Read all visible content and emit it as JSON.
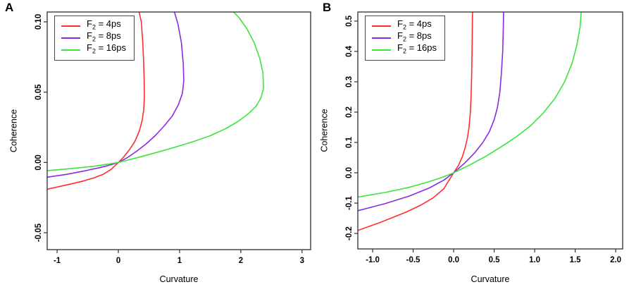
{
  "figure": {
    "background": "#ffffff"
  },
  "axis_style": {
    "box_color": "#2e2e2e",
    "tick_color": "#2e2e2e",
    "label_color": "#000000"
  },
  "chart_data": [
    {
      "type": "line",
      "panel_label": "A",
      "xlabel": "Curvature",
      "ylabel": "Coherence",
      "xlim": [
        -1.162,
        3.14
      ],
      "ylim": [
        -0.062,
        0.107
      ],
      "grid": false,
      "legend_position": "top-left",
      "x_ticks": {
        "values": [
          -1,
          0,
          1,
          2,
          3
        ],
        "labels": [
          "-1",
          "0",
          "1",
          "2",
          "3"
        ]
      },
      "y_ticks": {
        "values": [
          -0.05,
          0.0,
          0.05,
          0.1
        ],
        "labels": [
          "-0.05",
          "0.00",
          "0.05",
          "0.10"
        ]
      },
      "legend": {
        "entries": [
          {
            "prefix": "F",
            "sub": "2",
            "suffix": " = 4ps",
            "color": "#ff2e2e"
          },
          {
            "prefix": "F",
            "sub": "2",
            "suffix": " = 8ps",
            "color": "#8a2be2"
          },
          {
            "prefix": "F",
            "sub": "2",
            "suffix": " = 16ps",
            "color": "#3ce43c"
          }
        ]
      },
      "series": [
        {
          "name": "F2 = 4ps",
          "color": "#ff2e2e",
          "points": [
            [
              -1.162,
              -0.019
            ],
            [
              -0.9,
              -0.0165
            ],
            [
              -0.6,
              -0.0135
            ],
            [
              -0.4,
              -0.011
            ],
            [
              -0.25,
              -0.0085
            ],
            [
              -0.12,
              -0.005
            ],
            [
              0,
              0
            ],
            [
              0.09,
              0.004
            ],
            [
              0.18,
              0.009
            ],
            [
              0.27,
              0.015
            ],
            [
              0.34,
              0.022
            ],
            [
              0.39,
              0.03
            ],
            [
              0.415,
              0.038
            ],
            [
              0.425,
              0.047
            ],
            [
              0.422,
              0.058
            ],
            [
              0.413,
              0.072
            ],
            [
              0.398,
              0.086
            ],
            [
              0.375,
              0.1
            ],
            [
              0.335,
              0.108
            ]
          ]
        },
        {
          "name": "F2 = 8ps",
          "color": "#8a2be2",
          "points": [
            [
              -1.162,
              -0.0105
            ],
            [
              -0.85,
              -0.0085
            ],
            [
              -0.55,
              -0.006
            ],
            [
              -0.3,
              -0.0037
            ],
            [
              -0.12,
              -0.0016
            ],
            [
              0,
              0
            ],
            [
              0.15,
              0.0035
            ],
            [
              0.3,
              0.008
            ],
            [
              0.45,
              0.013
            ],
            [
              0.6,
              0.019
            ],
            [
              0.75,
              0.026
            ],
            [
              0.88,
              0.033
            ],
            [
              0.98,
              0.041
            ],
            [
              1.045,
              0.049
            ],
            [
              1.068,
              0.058
            ],
            [
              1.06,
              0.07
            ],
            [
              1.03,
              0.085
            ],
            [
              0.975,
              0.098
            ],
            [
              0.91,
              0.108
            ]
          ]
        },
        {
          "name": "F2 = 16ps",
          "color": "#3ce43c",
          "points": [
            [
              -1.162,
              -0.0058
            ],
            [
              -0.8,
              -0.0045
            ],
            [
              -0.4,
              -0.0027
            ],
            [
              0,
              0
            ],
            [
              0.3,
              0.0033
            ],
            [
              0.6,
              0.0068
            ],
            [
              0.9,
              0.0105
            ],
            [
              1.2,
              0.0145
            ],
            [
              1.5,
              0.019
            ],
            [
              1.75,
              0.024
            ],
            [
              1.95,
              0.029
            ],
            [
              2.12,
              0.0345
            ],
            [
              2.25,
              0.04
            ],
            [
              2.33,
              0.046
            ],
            [
              2.37,
              0.053
            ],
            [
              2.36,
              0.064
            ],
            [
              2.31,
              0.074
            ],
            [
              2.22,
              0.085
            ],
            [
              2.1,
              0.095
            ],
            [
              1.97,
              0.103
            ],
            [
              1.86,
              0.108
            ]
          ]
        }
      ]
    },
    {
      "type": "line",
      "panel_label": "B",
      "xlabel": "Curvature",
      "ylabel": "Coherence",
      "xlim": [
        -1.183,
        2.086
      ],
      "ylim": [
        -0.251,
        0.53
      ],
      "grid": false,
      "legend_position": "top-left",
      "x_ticks": {
        "values": [
          -1.0,
          -0.5,
          0.0,
          0.5,
          1.0,
          1.5,
          2.0
        ],
        "labels": [
          "-1.0",
          "-0.5",
          "0.0",
          "0.5",
          "1.0",
          "1.5",
          "2.0"
        ]
      },
      "y_ticks": {
        "values": [
          -0.2,
          -0.1,
          0.0,
          0.1,
          0.2,
          0.3,
          0.4,
          0.5
        ],
        "labels": [
          "-0.2",
          "-0.1",
          "0.0",
          "0.1",
          "0.2",
          "0.3",
          "0.4",
          "0.5"
        ]
      },
      "legend": {
        "entries": [
          {
            "prefix": "F",
            "sub": "2",
            "suffix": " = 4ps",
            "color": "#ff2e2e"
          },
          {
            "prefix": "F",
            "sub": "2",
            "suffix": " = 8ps",
            "color": "#8a2be2"
          },
          {
            "prefix": "F",
            "sub": "2",
            "suffix": " = 16ps",
            "color": "#3ce43c"
          }
        ]
      },
      "series": [
        {
          "name": "F2 = 4ps",
          "color": "#ff2e2e",
          "points": [
            [
              -1.183,
              -0.19
            ],
            [
              -0.9,
              -0.163
            ],
            [
              -0.6,
              -0.131
            ],
            [
              -0.4,
              -0.106
            ],
            [
              -0.25,
              -0.082
            ],
            [
              -0.12,
              -0.052
            ],
            [
              0,
              0
            ],
            [
              0.06,
              0.025
            ],
            [
              0.11,
              0.055
            ],
            [
              0.145,
              0.085
            ],
            [
              0.17,
              0.115
            ],
            [
              0.19,
              0.15
            ],
            [
              0.205,
              0.195
            ],
            [
              0.215,
              0.25
            ],
            [
              0.222,
              0.32
            ],
            [
              0.227,
              0.4
            ],
            [
              0.23,
              0.47
            ],
            [
              0.232,
              0.531
            ]
          ]
        },
        {
          "name": "F2 = 8ps",
          "color": "#8a2be2",
          "points": [
            [
              -1.183,
              -0.125
            ],
            [
              -0.85,
              -0.102
            ],
            [
              -0.55,
              -0.077
            ],
            [
              -0.3,
              -0.05
            ],
            [
              -0.12,
              -0.024
            ],
            [
              0,
              0
            ],
            [
              0.14,
              0.033
            ],
            [
              0.26,
              0.066
            ],
            [
              0.36,
              0.1
            ],
            [
              0.44,
              0.135
            ],
            [
              0.5,
              0.175
            ],
            [
              0.54,
              0.215
            ],
            [
              0.57,
              0.265
            ],
            [
              0.59,
              0.33
            ],
            [
              0.605,
              0.4
            ],
            [
              0.612,
              0.47
            ],
            [
              0.616,
              0.531
            ]
          ]
        },
        {
          "name": "F2 = 16ps",
          "color": "#3ce43c",
          "points": [
            [
              -1.183,
              -0.08
            ],
            [
              -0.85,
              -0.065
            ],
            [
              -0.55,
              -0.048
            ],
            [
              -0.3,
              -0.029
            ],
            [
              -0.12,
              -0.013
            ],
            [
              0,
              0
            ],
            [
              0.2,
              0.026
            ],
            [
              0.4,
              0.055
            ],
            [
              0.6,
              0.088
            ],
            [
              0.78,
              0.12
            ],
            [
              0.95,
              0.155
            ],
            [
              1.1,
              0.195
            ],
            [
              1.25,
              0.245
            ],
            [
              1.37,
              0.3
            ],
            [
              1.46,
              0.36
            ],
            [
              1.52,
              0.42
            ],
            [
              1.56,
              0.48
            ],
            [
              1.575,
              0.531
            ]
          ]
        }
      ]
    }
  ]
}
